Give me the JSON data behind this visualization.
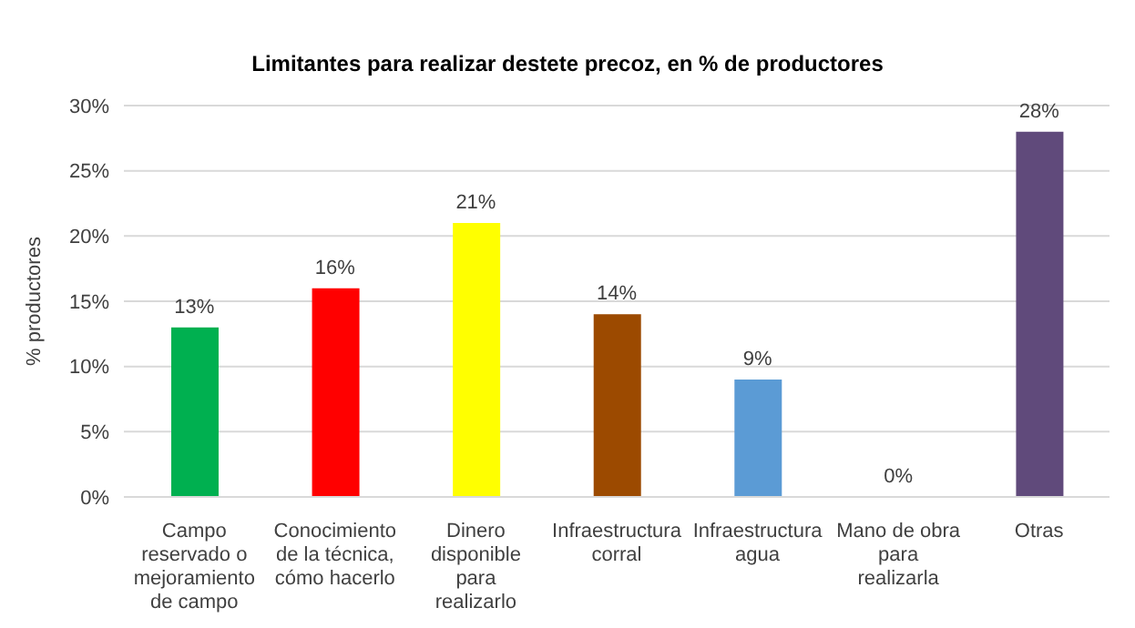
{
  "chart_data": {
    "type": "bar",
    "title": "Limitantes para realizar destete precoz, en % de productores",
    "ylabel": "% productores",
    "categories": [
      "Campo reservado o mejoramiento de campo",
      "Conocimiento de la técnica, cómo hacerlo",
      "Dinero disponible para realizarlo",
      "Infraestructura corral",
      "Infraestructura agua",
      "Mano de obra para realizarla",
      "Otras"
    ],
    "values": [
      13,
      16,
      21,
      14,
      9,
      0,
      28
    ],
    "value_labels": [
      "13%",
      "16%",
      "21%",
      "14%",
      "9%",
      "0%",
      "28%"
    ],
    "colors": [
      "#00b050",
      "#ff0000",
      "#ffff00",
      "#9c4a00",
      "#5b9bd5",
      "#7f7f7f",
      "#604a7b"
    ],
    "ylim": [
      0,
      30
    ],
    "yticks": [
      {
        "value": 0,
        "label": "0%"
      },
      {
        "value": 5,
        "label": "5%"
      },
      {
        "value": 10,
        "label": "10%"
      },
      {
        "value": 15,
        "label": "15%"
      },
      {
        "value": 20,
        "label": "20%"
      },
      {
        "value": 25,
        "label": "25%"
      },
      {
        "value": 30,
        "label": "30%"
      }
    ],
    "grid": "y",
    "legend": false
  }
}
